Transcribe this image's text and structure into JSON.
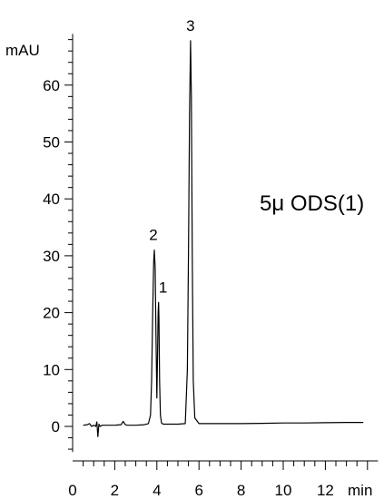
{
  "chart_data": {
    "type": "line",
    "title": "",
    "annotation": "5μ ODS(1)",
    "xlabel": "min",
    "ylabel": "mAU",
    "xlim": [
      0,
      14.5
    ],
    "ylim": [
      -4.5,
      69
    ],
    "x_ticks": [
      0,
      2,
      4,
      6,
      8,
      10,
      12
    ],
    "x_tick_labels": [
      "0",
      "2",
      "4",
      "6",
      "8",
      "10",
      "12"
    ],
    "y_ticks": [
      0,
      10,
      20,
      30,
      40,
      50,
      60
    ],
    "y_tick_labels": [
      "0",
      "10",
      "20",
      "30",
      "40",
      "50",
      "60"
    ],
    "grid": false,
    "line_color": "#000000",
    "peaks": [
      {
        "label": "2",
        "x": 3.88,
        "y": 31.0
      },
      {
        "label": "1",
        "x": 4.08,
        "y": 21.8
      },
      {
        "label": "3",
        "x": 5.6,
        "y": 67.8
      }
    ],
    "series": [
      {
        "x": [
          0.5,
          0.7,
          0.8,
          0.9,
          1.0,
          1.1,
          1.15,
          1.2,
          1.25,
          1.3,
          1.4,
          1.6,
          2.0,
          2.3,
          2.4,
          2.5,
          2.6,
          3.0,
          3.4,
          3.6,
          3.7,
          3.75,
          3.8,
          3.85,
          3.88,
          3.92,
          3.96,
          4.0,
          4.03,
          4.06,
          4.08,
          4.1,
          4.13,
          4.17,
          4.22,
          4.3,
          4.5,
          5.0,
          5.35,
          5.45,
          5.5,
          5.55,
          5.6,
          5.64,
          5.68,
          5.73,
          5.8,
          6.0,
          7.0,
          8.0,
          9.0,
          10.0,
          11.0,
          12.0,
          13.0,
          13.8
        ],
        "y": [
          0.2,
          0.3,
          0.5,
          0.0,
          0.2,
          0.0,
          0.8,
          -1.8,
          0.4,
          0.0,
          0.2,
          0.2,
          0.2,
          0.3,
          0.9,
          0.3,
          0.2,
          0.2,
          0.3,
          0.5,
          2.0,
          8.0,
          20.0,
          29.0,
          31.0,
          28.0,
          15.0,
          5.0,
          12.0,
          20.0,
          21.8,
          19.0,
          8.0,
          2.0,
          0.6,
          0.4,
          0.4,
          0.4,
          0.5,
          10.0,
          30.0,
          55.0,
          67.8,
          58.0,
          30.0,
          8.0,
          1.5,
          0.5,
          0.5,
          0.5,
          0.55,
          0.6,
          0.6,
          0.65,
          0.7,
          0.7
        ]
      }
    ]
  }
}
